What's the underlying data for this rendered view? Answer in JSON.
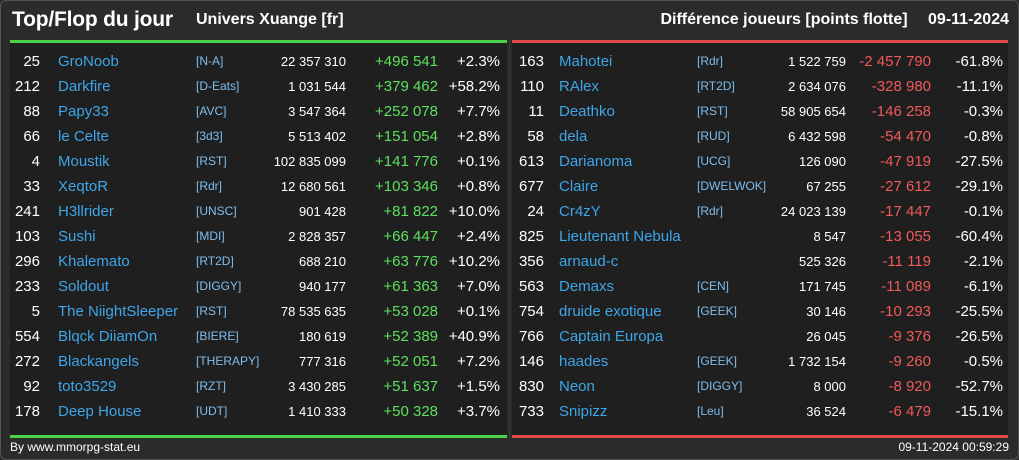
{
  "header": {
    "title": "Top/Flop du jour",
    "universe": "Univers Xuange [fr]",
    "subtitle": "Différence joueurs [points flotte]",
    "date": "09-11-2024"
  },
  "top": [
    {
      "rank": "25",
      "name": "GroNoob",
      "tag": "[N-A]",
      "points": "22 357 310",
      "diff": "+496 541",
      "pct": "+2.3%"
    },
    {
      "rank": "212",
      "name": "Darkfire",
      "tag": "[D-Eats]",
      "points": "1 031 544",
      "diff": "+379 462",
      "pct": "+58.2%"
    },
    {
      "rank": "88",
      "name": "Papy33",
      "tag": "[AVC]",
      "points": "3 547 364",
      "diff": "+252 078",
      "pct": "+7.7%"
    },
    {
      "rank": "66",
      "name": "le Celte",
      "tag": "[3d3]",
      "points": "5 513 402",
      "diff": "+151 054",
      "pct": "+2.8%"
    },
    {
      "rank": "4",
      "name": "Moustik",
      "tag": "[RST]",
      "points": "102 835 099",
      "diff": "+141 776",
      "pct": "+0.1%"
    },
    {
      "rank": "33",
      "name": "XeqtoR",
      "tag": "[Rdr]",
      "points": "12 680 561",
      "diff": "+103 346",
      "pct": "+0.8%"
    },
    {
      "rank": "241",
      "name": "H3llrider",
      "tag": "[UNSC]",
      "points": "901 428",
      "diff": "+81 822",
      "pct": "+10.0%"
    },
    {
      "rank": "103",
      "name": "Sushi",
      "tag": "[MDI]",
      "points": "2 828 357",
      "diff": "+66 447",
      "pct": "+2.4%"
    },
    {
      "rank": "296",
      "name": "Khalemato",
      "tag": "[RT2D]",
      "points": "688 210",
      "diff": "+63 776",
      "pct": "+10.2%"
    },
    {
      "rank": "233",
      "name": "Soldout",
      "tag": "[DIGGY]",
      "points": "940 177",
      "diff": "+61 363",
      "pct": "+7.0%"
    },
    {
      "rank": "5",
      "name": "The NiightSleeper",
      "tag": "[RST]",
      "points": "78 535 635",
      "diff": "+53 028",
      "pct": "+0.1%"
    },
    {
      "rank": "554",
      "name": "Blqck DiiamOn",
      "tag": "[BIERE]",
      "points": "180 619",
      "diff": "+52 389",
      "pct": "+40.9%"
    },
    {
      "rank": "272",
      "name": "Blackangels",
      "tag": "[THERAPY]",
      "points": "777 316",
      "diff": "+52 051",
      "pct": "+7.2%"
    },
    {
      "rank": "92",
      "name": "toto3529",
      "tag": "[RZT]",
      "points": "3 430 285",
      "diff": "+51 637",
      "pct": "+1.5%"
    },
    {
      "rank": "178",
      "name": "Deep House",
      "tag": "[UDT]",
      "points": "1 410 333",
      "diff": "+50 328",
      "pct": "+3.7%"
    }
  ],
  "flop": [
    {
      "rank": "163",
      "name": "Mahotei",
      "tag": "[Rdr]",
      "points": "1 522 759",
      "diff": "-2 457 790",
      "pct": "-61.8%"
    },
    {
      "rank": "110",
      "name": "RAlex",
      "tag": "[RT2D]",
      "points": "2 634 076",
      "diff": "-328 980",
      "pct": "-11.1%"
    },
    {
      "rank": "11",
      "name": "Deathko",
      "tag": "[RST]",
      "points": "58 905 654",
      "diff": "-146 258",
      "pct": "-0.3%"
    },
    {
      "rank": "58",
      "name": "dela",
      "tag": "[RUD]",
      "points": "6 432 598",
      "diff": "-54 470",
      "pct": "-0.8%"
    },
    {
      "rank": "613",
      "name": "Darianoma",
      "tag": "[UCG]",
      "points": "126 090",
      "diff": "-47 919",
      "pct": "-27.5%"
    },
    {
      "rank": "677",
      "name": "Claire",
      "tag": "[DWELWOK]",
      "points": "67 255",
      "diff": "-27 612",
      "pct": "-29.1%"
    },
    {
      "rank": "24",
      "name": "Cr4zY",
      "tag": "[Rdr]",
      "points": "24 023 139",
      "diff": "-17 447",
      "pct": "-0.1%"
    },
    {
      "rank": "825",
      "name": "Lieutenant Nebula",
      "tag": "",
      "points": "8 547",
      "diff": "-13 055",
      "pct": "-60.4%"
    },
    {
      "rank": "356",
      "name": "arnaud-c",
      "tag": "",
      "points": "525 326",
      "diff": "-11 119",
      "pct": "-2.1%"
    },
    {
      "rank": "563",
      "name": "Demaxs",
      "tag": "[CEN]",
      "points": "171 745",
      "diff": "-11 089",
      "pct": "-6.1%"
    },
    {
      "rank": "754",
      "name": "druide exotique",
      "tag": "[GEEK]",
      "points": "30 146",
      "diff": "-10 293",
      "pct": "-25.5%"
    },
    {
      "rank": "766",
      "name": "Captain Europa",
      "tag": "",
      "points": "26 045",
      "diff": "-9 376",
      "pct": "-26.5%"
    },
    {
      "rank": "146",
      "name": "haades",
      "tag": "[GEEK]",
      "points": "1 732 154",
      "diff": "-9 260",
      "pct": "-0.5%"
    },
    {
      "rank": "830",
      "name": "Neon",
      "tag": "[DIGGY]",
      "points": "8 000",
      "diff": "-8 920",
      "pct": "-52.7%"
    },
    {
      "rank": "733",
      "name": "Snipizz",
      "tag": "[Leu]",
      "points": "36 524",
      "diff": "-6 479",
      "pct": "-15.1%"
    }
  ],
  "footer": {
    "credit": "By www.mmorpg-stat.eu",
    "timestamp": "09-11-2024 00:59:29"
  },
  "colors": {
    "top_accent": "#4bd24b",
    "flop_accent": "#e04848",
    "name_link": "#3ea6e8"
  }
}
